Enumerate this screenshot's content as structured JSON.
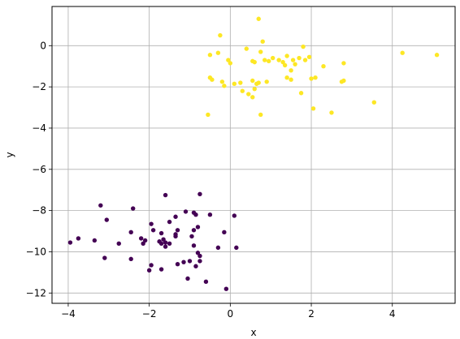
{
  "chart_data": {
    "type": "scatter",
    "title": "",
    "xlabel": "x",
    "ylabel": "y",
    "xlim": [
      -4.4,
      5.55
    ],
    "ylim": [
      -12.5,
      1.9
    ],
    "xticks": [
      -4,
      -2,
      0,
      2,
      4
    ],
    "yticks": [
      -12,
      -10,
      -8,
      -6,
      -4,
      -2,
      0
    ],
    "xtick_labels": [
      "−4",
      "−2",
      "0",
      "2",
      "4"
    ],
    "ytick_labels": [
      "−12",
      "−10",
      "−8",
      "−6",
      "−4",
      "−2",
      "0"
    ],
    "grid": true,
    "legend": "none",
    "series": [
      {
        "color": "#fde725",
        "points": [
          [
            -0.25,
            0.5
          ],
          [
            0.7,
            1.3
          ],
          [
            0.8,
            0.2
          ],
          [
            1.8,
            -0.05
          ],
          [
            1.2,
            -0.7
          ],
          [
            1.3,
            -0.8
          ],
          [
            1.05,
            -0.6
          ],
          [
            1.4,
            -0.5
          ],
          [
            1.5,
            -1.2
          ],
          [
            1.6,
            -0.9
          ],
          [
            1.7,
            -0.6
          ],
          [
            1.85,
            -0.7
          ],
          [
            1.95,
            -0.55
          ],
          [
            1.55,
            -0.7
          ],
          [
            1.35,
            -0.95
          ],
          [
            0.4,
            -0.15
          ],
          [
            0.75,
            -0.3
          ],
          [
            0.85,
            -0.7
          ],
          [
            0.95,
            -0.75
          ],
          [
            0.55,
            -0.75
          ],
          [
            0.6,
            -0.8
          ],
          [
            -0.5,
            -0.45
          ],
          [
            -0.3,
            -0.35
          ],
          [
            -0.05,
            -0.7
          ],
          [
            0.0,
            -0.85
          ],
          [
            -0.5,
            -1.55
          ],
          [
            -0.45,
            -1.65
          ],
          [
            -0.2,
            -1.75
          ],
          [
            -0.15,
            -1.95
          ],
          [
            0.1,
            -1.85
          ],
          [
            0.25,
            -1.8
          ],
          [
            0.55,
            -1.7
          ],
          [
            0.65,
            -1.85
          ],
          [
            0.7,
            -1.8
          ],
          [
            0.9,
            -1.75
          ],
          [
            0.6,
            -2.1
          ],
          [
            0.3,
            -2.2
          ],
          [
            0.45,
            -2.35
          ],
          [
            0.55,
            -2.5
          ],
          [
            1.4,
            -1.55
          ],
          [
            1.5,
            -1.65
          ],
          [
            1.75,
            -2.3
          ],
          [
            2.0,
            -1.6
          ],
          [
            2.1,
            -1.55
          ],
          [
            2.3,
            -1.0
          ],
          [
            2.05,
            -3.05
          ],
          [
            2.5,
            -3.25
          ],
          [
            2.75,
            -1.75
          ],
          [
            2.8,
            -0.85
          ],
          [
            2.8,
            -1.7
          ],
          [
            0.75,
            -3.35
          ],
          [
            -0.55,
            -3.35
          ],
          [
            3.55,
            -2.75
          ],
          [
            4.25,
            -0.35
          ],
          [
            5.1,
            -0.45
          ]
        ]
      },
      {
        "color": "#440154",
        "points": [
          [
            -3.2,
            -7.75
          ],
          [
            -2.4,
            -7.9
          ],
          [
            -1.6,
            -7.25
          ],
          [
            -0.75,
            -7.2
          ],
          [
            -1.1,
            -8.05
          ],
          [
            -0.9,
            -8.1
          ],
          [
            -0.85,
            -8.2
          ],
          [
            -0.5,
            -8.2
          ],
          [
            0.1,
            -8.25
          ],
          [
            -3.05,
            -8.45
          ],
          [
            -1.35,
            -8.3
          ],
          [
            -1.5,
            -8.55
          ],
          [
            -1.95,
            -8.65
          ],
          [
            -2.45,
            -9.05
          ],
          [
            -3.75,
            -9.35
          ],
          [
            -3.35,
            -9.45
          ],
          [
            -3.95,
            -9.55
          ],
          [
            -2.75,
            -9.6
          ],
          [
            -2.2,
            -9.35
          ],
          [
            -2.1,
            -9.45
          ],
          [
            -2.15,
            -9.6
          ],
          [
            -1.9,
            -8.95
          ],
          [
            -1.7,
            -9.1
          ],
          [
            -1.65,
            -9.4
          ],
          [
            -1.6,
            -9.55
          ],
          [
            -1.7,
            -9.6
          ],
          [
            -1.75,
            -9.5
          ],
          [
            -1.6,
            -9.75
          ],
          [
            -1.5,
            -9.6
          ],
          [
            -1.35,
            -9.25
          ],
          [
            -1.35,
            -9.15
          ],
          [
            -1.3,
            -8.95
          ],
          [
            -0.9,
            -8.95
          ],
          [
            -0.8,
            -8.8
          ],
          [
            -0.95,
            -9.25
          ],
          [
            -0.9,
            -9.7
          ],
          [
            -0.15,
            -9.05
          ],
          [
            -0.3,
            -9.8
          ],
          [
            0.15,
            -9.8
          ],
          [
            -0.8,
            -10.05
          ],
          [
            -0.75,
            -10.2
          ],
          [
            -1.0,
            -10.45
          ],
          [
            -0.75,
            -10.45
          ],
          [
            -1.3,
            -10.6
          ],
          [
            -2.45,
            -10.35
          ],
          [
            -1.95,
            -10.65
          ],
          [
            -2.0,
            -10.9
          ],
          [
            -1.7,
            -10.85
          ],
          [
            -1.05,
            -11.3
          ],
          [
            -0.6,
            -11.45
          ],
          [
            -3.1,
            -10.3
          ],
          [
            -0.1,
            -11.8
          ],
          [
            -0.85,
            -10.7
          ],
          [
            -1.15,
            -10.5
          ]
        ]
      }
    ]
  }
}
